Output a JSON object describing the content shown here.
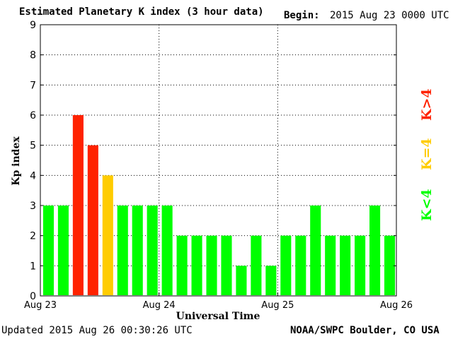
{
  "header": {
    "title": "Estimated Planetary K index (3 hour data)",
    "begin_label": "Begin:",
    "begin_value": "2015 Aug 23 0000 UTC"
  },
  "footer": {
    "updated": "Updated 2015 Aug 26 00:30:26 UTC",
    "source": "NOAA/SWPC Boulder, CO USA"
  },
  "legend": {
    "high": {
      "label": "K>4",
      "color": "#ff2200"
    },
    "equal": {
      "label": "K=4",
      "color": "#ffcc00"
    },
    "low": {
      "label": "K<4",
      "color": "#00ff00"
    }
  },
  "chart_data": {
    "type": "bar",
    "title": "Estimated Planetary K index (3 hour data)",
    "xlabel": "Universal Time",
    "ylabel": "Kp index",
    "ylim": [
      0,
      9
    ],
    "yticks": [
      0,
      1,
      2,
      3,
      4,
      5,
      6,
      7,
      8,
      9
    ],
    "xtick_labels": [
      "Aug 23",
      "Aug 24",
      "Aug 25",
      "Aug 26"
    ],
    "grid": true,
    "values": [
      3,
      3,
      6,
      5,
      4,
      3,
      3,
      3,
      3,
      2,
      2,
      2,
      2,
      1,
      2,
      1,
      2,
      2,
      3,
      2,
      2,
      2,
      3,
      2
    ]
  }
}
